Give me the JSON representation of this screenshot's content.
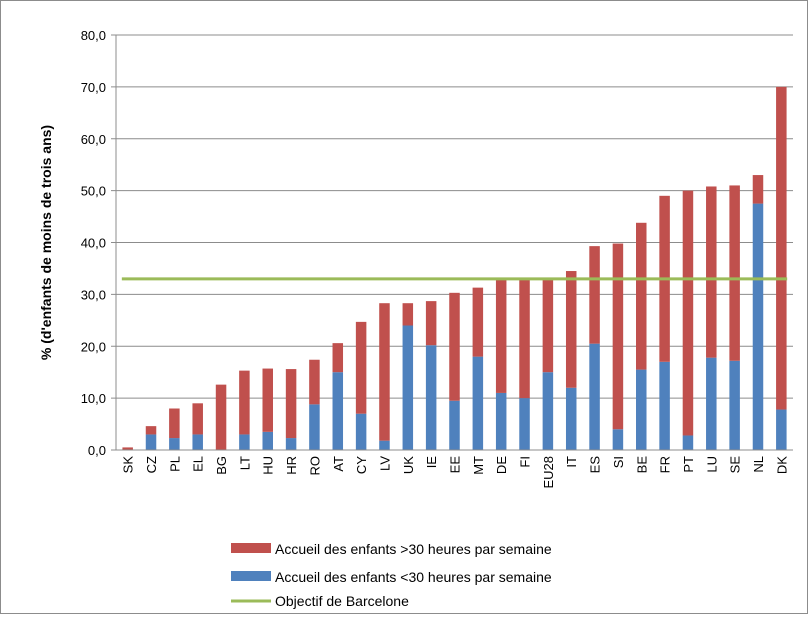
{
  "chart_data": {
    "type": "bar",
    "stacked": true,
    "ylabel": "% (d'enfants de moins de trois ans)",
    "ylim": [
      0,
      80
    ],
    "yticks": [
      "0,0",
      "10,0",
      "20,0",
      "30,0",
      "40,0",
      "50,0",
      "60,0",
      "70,0",
      "80,0"
    ],
    "grid": "horizontal",
    "legend_position": "bottom",
    "categories": [
      "SK",
      "CZ",
      "PL",
      "EL",
      "BG",
      "LT",
      "HU",
      "HR",
      "RO",
      "AT",
      "CY",
      "LV",
      "UK",
      "IE",
      "EE",
      "MT",
      "DE",
      "FI",
      "EU28",
      "IT",
      "ES",
      "SI",
      "BE",
      "FR",
      "PT",
      "LU",
      "SE",
      "NL",
      "DK"
    ],
    "series": [
      {
        "name": "Accueil des enfants <30 heures par semaine",
        "color": "#4f81bd",
        "values": [
          0,
          3,
          2.3,
          3,
          0,
          3,
          3.5,
          2.3,
          8.8,
          15,
          7,
          1.8,
          24,
          20.2,
          9.5,
          18,
          11,
          10,
          15,
          12,
          20.5,
          4,
          15.5,
          17,
          2.8,
          17.8,
          17.2,
          47.5,
          7.8
        ]
      },
      {
        "name": "Accueil des enfants >30 heures par semaine",
        "color": "#c0504d",
        "values": [
          0.5,
          1.6,
          5.7,
          6,
          12.6,
          12.3,
          12.2,
          13.3,
          8.6,
          5.6,
          17.7,
          26.5,
          4.3,
          8.5,
          20.8,
          13.3,
          21.8,
          23,
          18,
          22.5,
          18.8,
          35.8,
          28.3,
          32,
          47.2,
          33,
          33.8,
          5.5,
          62.2
        ]
      }
    ],
    "reference_line": {
      "name": "Objectif de Barcelone",
      "value": 33,
      "color": "#9bbb59"
    },
    "legend": [
      {
        "label": "Accueil des enfants >30 heures par semaine",
        "color": "#c0504d",
        "kind": "bar"
      },
      {
        "label": "Accueil des enfants <30 heures par semaine",
        "color": "#4f81bd",
        "kind": "bar"
      },
      {
        "label": "Objectif de Barcelone",
        "color": "#9bbb59",
        "kind": "line"
      }
    ]
  }
}
